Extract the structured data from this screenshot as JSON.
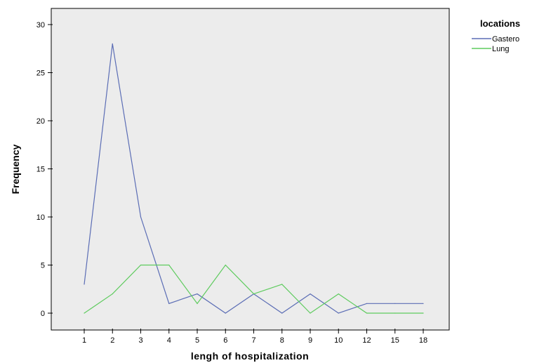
{
  "chart_data": {
    "type": "line",
    "xlabel": "lengh of hospitalization",
    "ylabel": "Frequency",
    "categories": [
      "1",
      "2",
      "3",
      "4",
      "5",
      "6",
      "7",
      "8",
      "9",
      "10",
      "12",
      "15",
      "18"
    ],
    "ylim": [
      0,
      30
    ],
    "yticks": [
      0,
      5,
      10,
      15,
      20,
      25,
      30
    ],
    "legend": {
      "title": "locations",
      "position": "top-right"
    },
    "grid": false,
    "plot_background": "#ececec",
    "series": [
      {
        "name": "Gastero",
        "color": "#5b6db5",
        "values": [
          3,
          28,
          10,
          1,
          2,
          0,
          2,
          0,
          2,
          0,
          1,
          1,
          1
        ]
      },
      {
        "name": "Lung",
        "color": "#5ecb5e",
        "values": [
          0,
          2,
          5,
          5,
          1,
          5,
          2,
          3,
          0,
          2,
          0,
          0,
          0
        ]
      }
    ]
  }
}
